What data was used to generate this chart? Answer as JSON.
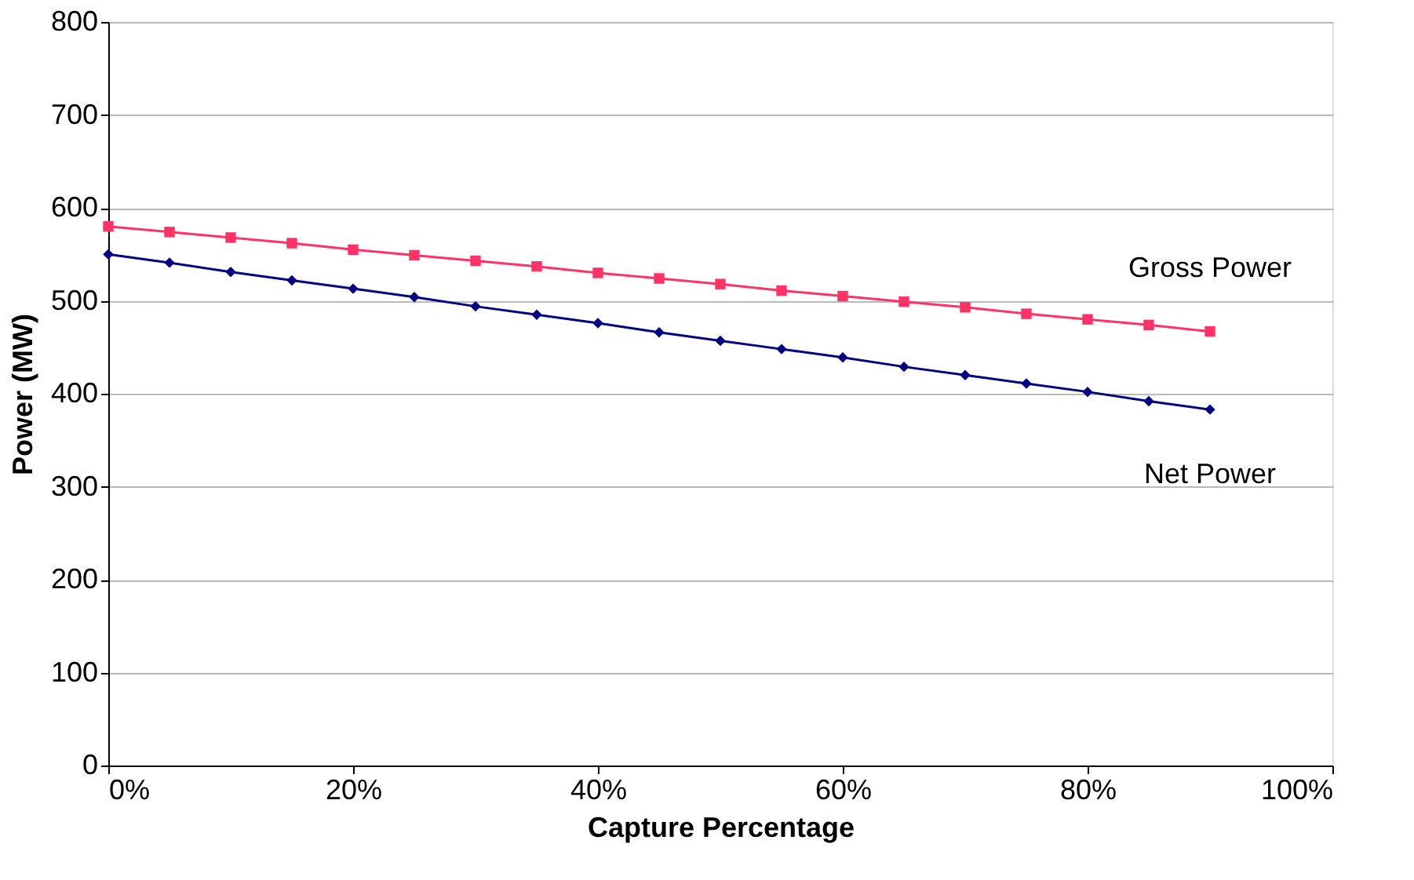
{
  "chart_data": {
    "type": "line",
    "xlabel": "Capture Percentage",
    "ylabel": "Power (MW)",
    "x": [
      0,
      5,
      10,
      15,
      20,
      25,
      30,
      35,
      40,
      45,
      50,
      55,
      60,
      65,
      70,
      75,
      80,
      85,
      90
    ],
    "series": [
      {
        "name": "Gross Power",
        "color": "#ff3366",
        "marker": "square",
        "values": [
          580,
          574,
          568,
          562,
          555,
          549,
          543,
          537,
          530,
          524,
          518,
          511,
          505,
          499,
          493,
          486,
          480,
          474,
          467
        ]
      },
      {
        "name": "Net Power",
        "color": "#000080",
        "marker": "diamond",
        "values": [
          550,
          541,
          531,
          522,
          513,
          504,
          494,
          485,
          476,
          466,
          457,
          448,
          439,
          429,
          420,
          411,
          402,
          392,
          383
        ]
      }
    ],
    "xlim": [
      0,
      100
    ],
    "xticks": [
      {
        "value": 0,
        "label": "0%"
      },
      {
        "value": 20,
        "label": "20%"
      },
      {
        "value": 40,
        "label": "40%"
      },
      {
        "value": 60,
        "label": "60%"
      },
      {
        "value": 80,
        "label": "80%"
      },
      {
        "value": 100,
        "label": "100%"
      }
    ],
    "ylim": [
      0,
      800
    ],
    "yticks": [
      0,
      100,
      200,
      300,
      400,
      500,
      600,
      700,
      800
    ],
    "grid": "y",
    "legend": false,
    "line_style": "solid"
  }
}
